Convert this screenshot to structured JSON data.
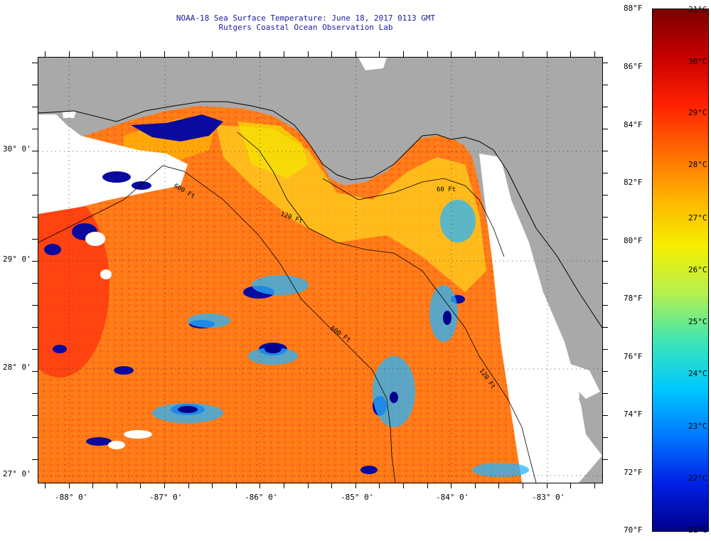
{
  "header": {
    "title_line1": "NOAA-18 Sea Surface Temperature:  June 18, 2017 0113 GMT",
    "title_line2": "Rutgers Coastal Ocean Observation Lab"
  },
  "map": {
    "lat_labels": [
      "30° 0'",
      "29° 0'",
      "28° 0'",
      "27° 0'"
    ],
    "lon_labels": [
      "-88° 0'",
      "-87° 0'",
      "-86° 0'",
      "-85° 0'",
      "-84° 0'",
      "-83° 0'"
    ],
    "contour_labels": [
      "60 Ft",
      "120 Ft",
      "600 Ft",
      "600 Ft",
      "120 Ft"
    ],
    "colors": {
      "land": "#a9a9a9",
      "no_data": "#ffffff",
      "sst_warm": "#ff5a00",
      "sst_orange": "#ff8c00",
      "sst_yellow": "#ffd200",
      "sst_cool": "#22a5ff",
      "sst_cold": "#0000a0"
    }
  },
  "colorbar": {
    "fahrenheit_labels": [
      "88°F",
      "86°F",
      "84°F",
      "82°F",
      "80°F",
      "78°F",
      "76°F",
      "74°F",
      "72°F",
      "70°F"
    ],
    "celsius_labels": [
      "31°C",
      "30°C",
      "29°C",
      "28°C",
      "27°C",
      "26°C",
      "25°C",
      "24°C",
      "23°C",
      "22°C",
      "21°C"
    ],
    "gradient_colors": [
      "#7a0000",
      "#c80000",
      "#ff2000",
      "#ff6a00",
      "#ffb400",
      "#f5f000",
      "#b4f050",
      "#3ce6b4",
      "#00c8ff",
      "#0078ff",
      "#0020e6",
      "#00008c"
    ]
  }
}
